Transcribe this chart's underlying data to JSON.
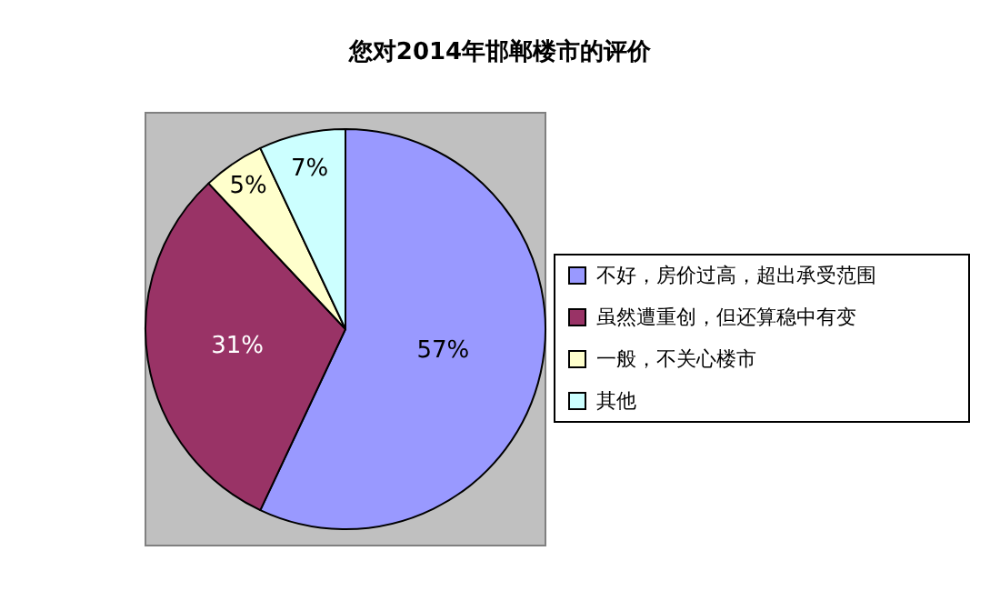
{
  "chart_data": {
    "type": "pie",
    "title": "您对2014年邯郸楼市的评价",
    "categories": [
      "不好，房价过高，超出承受范围",
      "虽然遭重创，但还算稳中有变",
      "一般，不关心楼市",
      "其他"
    ],
    "values": [
      57,
      31,
      5,
      7
    ],
    "value_labels": [
      "57%",
      "31%",
      "5%",
      "7%"
    ],
    "colors": [
      "#9999ff",
      "#993366",
      "#ffffcc",
      "#ccffff"
    ],
    "legend": "right"
  }
}
